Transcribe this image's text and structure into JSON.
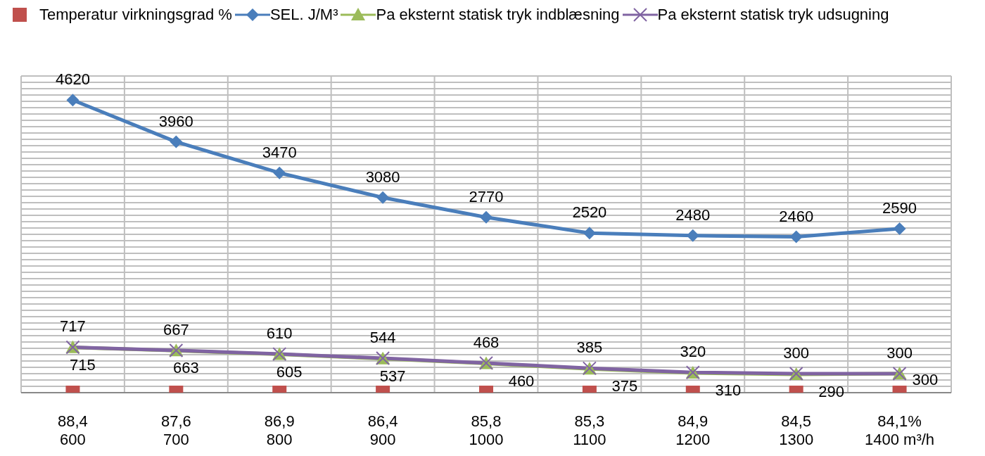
{
  "chart_data": {
    "type": "line",
    "categories": [
      "88,4\n600",
      "87,6\n700",
      "86,9\n800",
      "86,4\n900",
      "85,8\n1000",
      "85,3\n1100",
      "84,9\n1200",
      "84,5\n1300",
      "84,1%\n1400 m³/h"
    ],
    "series": [
      {
        "name": "Temperatur virkningsgrad %",
        "type": "scatter",
        "marker": "square",
        "color": "#c0504d",
        "values": [
          0,
          0,
          0,
          0,
          0,
          0,
          0,
          0,
          0
        ],
        "value_labels": [
          null,
          null,
          null,
          null,
          null,
          null,
          null,
          null,
          null
        ]
      },
      {
        "name": "SEL. J/M³",
        "type": "line",
        "marker": "diamond",
        "color": "#4a7ebb",
        "values": [
          4620,
          3960,
          3470,
          3080,
          2770,
          2520,
          2480,
          2460,
          2590
        ]
      },
      {
        "name": "Pa eksternt statisk tryk indblæsning",
        "type": "line",
        "marker": "triangle",
        "color": "#9bbb59",
        "values": [
          715,
          663,
          605,
          537,
          460,
          375,
          310,
          290,
          300
        ]
      },
      {
        "name": "Pa eksternt statisk tryk udsugning",
        "type": "line",
        "marker": "cross",
        "color": "#8064a2",
        "values": [
          717,
          667,
          610,
          544,
          468,
          385,
          320,
          300,
          300
        ]
      }
    ],
    "ylim": [
      0,
      5000
    ],
    "yticks": [
      {
        "value": 0,
        "label": null
      },
      {
        "value": 100,
        "label": null
      },
      {
        "value": 200,
        "label": null
      },
      {
        "value": 300,
        "label": null
      },
      {
        "value": 400,
        "label": null
      },
      {
        "value": 500,
        "label": null
      },
      {
        "value": 600,
        "label": null
      },
      {
        "value": 700,
        "label": null
      },
      {
        "value": 800,
        "label": null
      },
      {
        "value": 900,
        "label": null
      },
      {
        "value": 1000,
        "label": null
      },
      {
        "value": 1100,
        "label": null
      },
      {
        "value": 1200,
        "label": null
      },
      {
        "value": 1300,
        "label": null
      },
      {
        "value": 1400,
        "label": null
      },
      {
        "value": 1500,
        "label": null
      },
      {
        "value": 1600,
        "label": null
      },
      {
        "value": 1700,
        "label": null
      },
      {
        "value": 1800,
        "label": null
      },
      {
        "value": 1900,
        "label": null
      },
      {
        "value": 2000,
        "label": null
      },
      {
        "value": 2100,
        "label": null
      },
      {
        "value": 2200,
        "label": null
      },
      {
        "value": 2300,
        "label": null
      },
      {
        "value": 2400,
        "label": null
      },
      {
        "value": 2500,
        "label": null
      },
      {
        "value": 2600,
        "label": null
      },
      {
        "value": 2700,
        "label": null
      },
      {
        "value": 2800,
        "label": null
      },
      {
        "value": 2900,
        "label": null
      },
      {
        "value": 3000,
        "label": null
      },
      {
        "value": 3100,
        "label": null
      },
      {
        "value": 3200,
        "label": null
      },
      {
        "value": 3300,
        "label": null
      },
      {
        "value": 3400,
        "label": null
      },
      {
        "value": 3500,
        "label": null
      },
      {
        "value": 3600,
        "label": null
      },
      {
        "value": 3700,
        "label": null
      },
      {
        "value": 3800,
        "label": null
      },
      {
        "value": 3900,
        "label": null
      },
      {
        "value": 4000,
        "label": null
      },
      {
        "value": 4100,
        "label": null
      },
      {
        "value": 4200,
        "label": null
      },
      {
        "value": 4300,
        "label": null
      },
      {
        "value": 4400,
        "label": null
      },
      {
        "value": 4500,
        "label": null
      },
      {
        "value": 4600,
        "label": null
      },
      {
        "value": 4700,
        "label": null
      },
      {
        "value": 4800,
        "label": null
      },
      {
        "value": 4900,
        "label": null
      },
      {
        "value": 5000,
        "label": null
      }
    ],
    "tick_labels": "x",
    "grid": true,
    "legend": "top",
    "line_style": "solid",
    "data_labels": true
  }
}
